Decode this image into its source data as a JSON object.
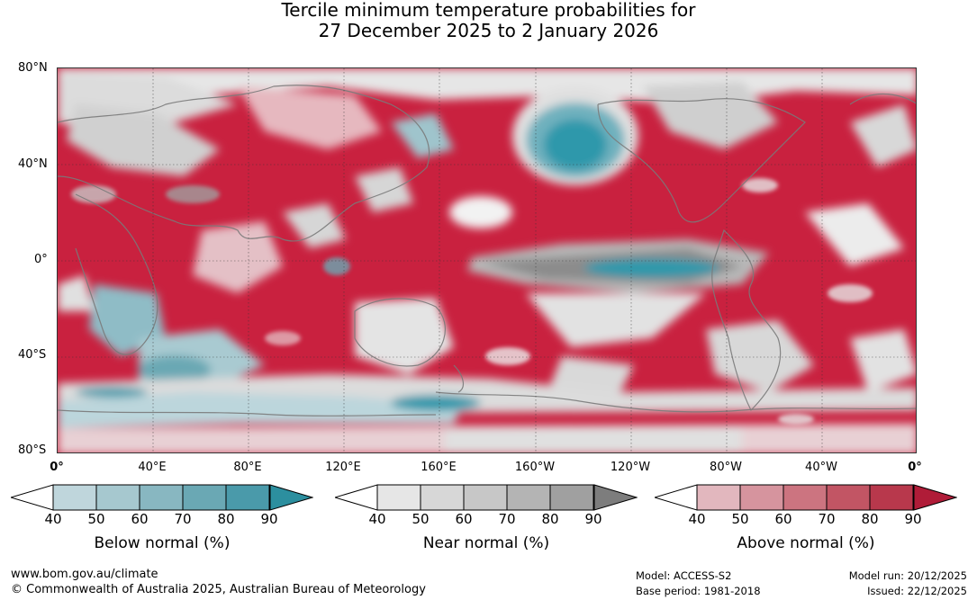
{
  "title": {
    "line1": "Tercile minimum temperature probabilities for",
    "line2": "27 December 2025 to 2 January 2026"
  },
  "map": {
    "lat_labels": [
      "80°N",
      "40°N",
      "0°",
      "40°S",
      "80°S"
    ],
    "lon_labels": [
      "0°",
      "40°E",
      "80°E",
      "120°E",
      "160°E",
      "160°W",
      "120°W",
      "80°W",
      "40°W",
      "0°"
    ],
    "colors": {
      "ocean_base": "#c9213f",
      "below_strong": "#2f98ab",
      "near_gray": "#c8c8c8",
      "near_dark": "#8a8a8a",
      "above_light": "#e3b5bc",
      "coastline": "#7a7a7a"
    }
  },
  "legends": [
    {
      "title": "Below normal (%)",
      "ticks": [
        "40",
        "50",
        "60",
        "70",
        "80",
        "90"
      ],
      "colors": [
        "#bfd6dc",
        "#a6c8cf",
        "#88b7c1",
        "#6aa8b4",
        "#4a9aaa",
        "#2c8f9f"
      ]
    },
    {
      "title": "Near normal (%)",
      "ticks": [
        "40",
        "50",
        "60",
        "70",
        "80",
        "90"
      ],
      "colors": [
        "#e6e6e6",
        "#d7d7d7",
        "#c7c7c7",
        "#b4b4b4",
        "#a0a0a0",
        "#7d7d7d"
      ]
    },
    {
      "title": "Above normal (%)",
      "ticks": [
        "40",
        "50",
        "60",
        "70",
        "80",
        "90"
      ],
      "colors": [
        "#e2b7be",
        "#d6949e",
        "#cc7480",
        "#c25564",
        "#b8384c",
        "#b01c38"
      ]
    }
  ],
  "footer": {
    "url": "www.bom.gov.au/climate",
    "copyright": "© Commonwealth of Australia 2025, Australian Bureau of Meteorology",
    "model": "Model: ACCESS-S2",
    "base_period": "Base period: 1981-2018",
    "model_run": "Model run: 20/12/2025",
    "issued": "Issued: 22/12/2025"
  }
}
